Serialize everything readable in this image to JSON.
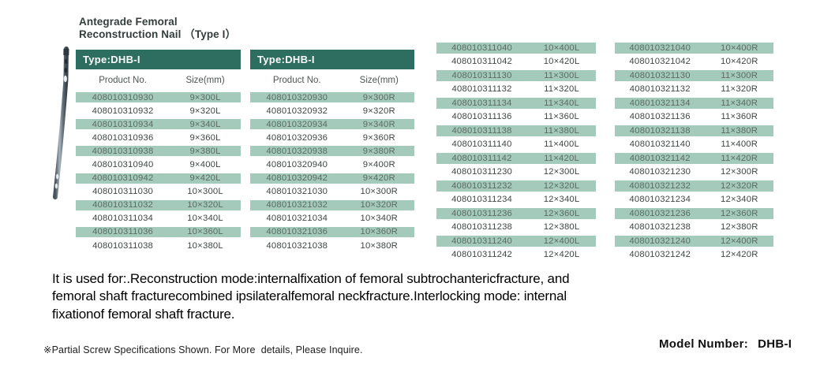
{
  "colors": {
    "accent": "#2d6e60",
    "row_shade": "#a4cabb",
    "title_text": "#333e3c"
  },
  "page": {
    "title_line1": "Antegrade Femoral",
    "title_line2": "Reconstruction Nail （Type I）"
  },
  "tables": {
    "type_label": "Type:DHB-I",
    "col_product": "Product No.",
    "col_size": "Size(mm)",
    "table1": {
      "rows": [
        {
          "no": "408010310930",
          "size": "9×300L"
        },
        {
          "no": "408010310932",
          "size": "9×320L"
        },
        {
          "no": "408010310934",
          "size": "9×340L"
        },
        {
          "no": "408010310936",
          "size": "9×360L"
        },
        {
          "no": "408010310938",
          "size": "9×380L"
        },
        {
          "no": "408010310940",
          "size": "9×400L"
        },
        {
          "no": "408010310942",
          "size": "9×420L"
        },
        {
          "no": "408010311030",
          "size": "10×300L"
        },
        {
          "no": "408010311032",
          "size": "10×320L"
        },
        {
          "no": "408010311034",
          "size": "10×340L"
        },
        {
          "no": "408010311036",
          "size": "10×360L"
        },
        {
          "no": "408010311038",
          "size": "10×380L"
        }
      ]
    },
    "table2": {
      "rows": [
        {
          "no": "408010320930",
          "size": "9×300R"
        },
        {
          "no": "408010320932",
          "size": "9×320R"
        },
        {
          "no": "408010320934",
          "size": "9×340R"
        },
        {
          "no": "408010320936",
          "size": "9×360R"
        },
        {
          "no": "408010320938",
          "size": "9×380R"
        },
        {
          "no": "408010320940",
          "size": "9×400R"
        },
        {
          "no": "408010320942",
          "size": "9×420R"
        },
        {
          "no": "408010321030",
          "size": "10×300R"
        },
        {
          "no": "408010321032",
          "size": "10×320R"
        },
        {
          "no": "408010321034",
          "size": "10×340R"
        },
        {
          "no": "408010321036",
          "size": "10×360R"
        },
        {
          "no": "408010321038",
          "size": "10×380R"
        }
      ]
    },
    "table3": {
      "rows": [
        {
          "no": "408010311040",
          "size": "10×400L"
        },
        {
          "no": "408010311042",
          "size": "10×420L"
        },
        {
          "no": "408010311130",
          "size": "11×300L"
        },
        {
          "no": "408010311132",
          "size": "11×320L"
        },
        {
          "no": "408010311134",
          "size": "11×340L"
        },
        {
          "no": "408010311136",
          "size": "11×360L"
        },
        {
          "no": "408010311138",
          "size": "11×380L"
        },
        {
          "no": "408010311140",
          "size": "11×400L"
        },
        {
          "no": "408010311142",
          "size": "11×420L"
        },
        {
          "no": "408010311230",
          "size": "12×300L"
        },
        {
          "no": "408010311232",
          "size": "12×320L"
        },
        {
          "no": "408010311234",
          "size": "12×340L"
        },
        {
          "no": "408010311236",
          "size": "12×360L"
        },
        {
          "no": "408010311238",
          "size": "12×380L"
        },
        {
          "no": "408010311240",
          "size": "12×400L"
        },
        {
          "no": "408010311242",
          "size": "12×420L"
        }
      ]
    },
    "table4": {
      "rows": [
        {
          "no": "408010321040",
          "size": "10×400R"
        },
        {
          "no": "408010321042",
          "size": "10×420R"
        },
        {
          "no": "408010321130",
          "size": "11×300R"
        },
        {
          "no": "408010321132",
          "size": "11×320R"
        },
        {
          "no": "408010321134",
          "size": "11×340R"
        },
        {
          "no": "408010321136",
          "size": "11×360R"
        },
        {
          "no": "408010321138",
          "size": "11×380R"
        },
        {
          "no": "408010321140",
          "size": "11×400R"
        },
        {
          "no": "408010321142",
          "size": "11×420R"
        },
        {
          "no": "408010321230",
          "size": "12×300R"
        },
        {
          "no": "408010321232",
          "size": "12×320R"
        },
        {
          "no": "408010321234",
          "size": "12×340R"
        },
        {
          "no": "408010321236",
          "size": "12×360R"
        },
        {
          "no": "408010321238",
          "size": "12×380R"
        },
        {
          "no": "408010321240",
          "size": "12×400R"
        },
        {
          "no": "408010321242",
          "size": "12×420R"
        }
      ]
    }
  },
  "description": {
    "lines": [
      "It is used for:.Reconstruction mode:internalfixation of femoral subtrochantericfracture, and",
      "femoral shaft fracturecombined ipsilateralfemoral neckfracture.Interlocking mode: internal",
      "fixationof femoral shaft fracture."
    ]
  },
  "footnote": "※Partial Screw Specifications Shown. For More  details, Please Inquire.",
  "model": {
    "label": "Model Number:",
    "value": "DHB-I"
  }
}
